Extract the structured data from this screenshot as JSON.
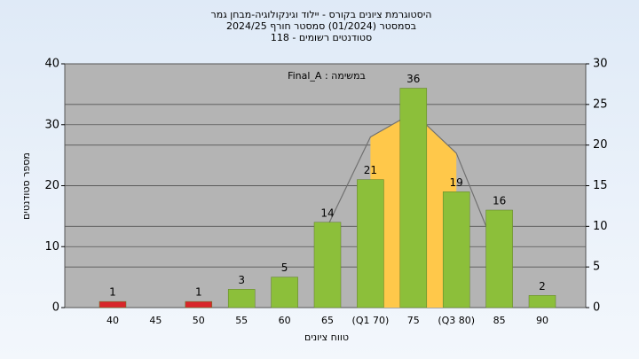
{
  "chart_data": {
    "type": "bar",
    "title": [
      "היסטוגרמת ציונים בקורס - יילוד וגינקולוגיה-מבחן גמר",
      "בסמסטר  (01/2024)  סמסטר חורף 2024/25",
      "סטודנטים רשומים - 118"
    ],
    "annotation": "Final_A : במשימה",
    "x_label": "טווח ציונים",
    "y_label": "מספר סטודנטים",
    "categories": [
      "40",
      "45",
      "50",
      "55",
      "60",
      "65",
      "(Q1 70)",
      "75",
      "(Q3 80)",
      "85",
      "90"
    ],
    "values": [
      1,
      null,
      1,
      3,
      5,
      14,
      21,
      36,
      19,
      16,
      2
    ],
    "colors": [
      "#d8262a",
      null,
      "#d8262a",
      "#8cbf3a",
      "#8cbf3a",
      "#8cbf3a",
      "#8cbf3a",
      "#8cbf3a",
      "#8cbf3a",
      "#8cbf3a",
      "#8cbf3a"
    ],
    "ylim": [
      0,
      40
    ],
    "yticks": [
      0,
      10,
      20,
      30,
      40
    ],
    "y2lim": [
      0,
      30
    ],
    "y2ticks": [
      0,
      5,
      10,
      15,
      20,
      25,
      30
    ],
    "curve": {
      "axis": "y2",
      "color": "#707070",
      "fill_color": "#ffc84a",
      "values": [
        null,
        null,
        null,
        null,
        null,
        10,
        21,
        24,
        19,
        6,
        null
      ],
      "fill_from": 6,
      "fill_to": 8
    },
    "grid": true
  }
}
